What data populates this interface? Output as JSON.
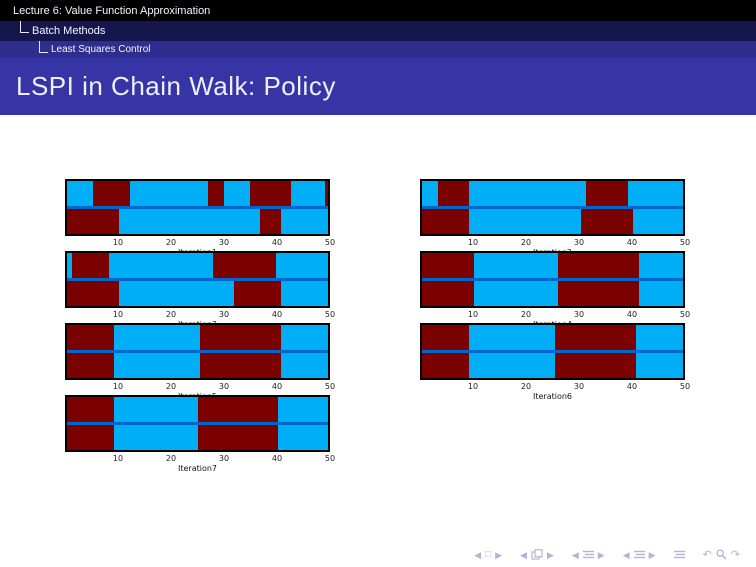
{
  "header": {
    "lecture_title": "Lecture 6: Value Function Approximation",
    "section": "Batch Methods",
    "subsection": "Least Squares Control"
  },
  "slide": {
    "title": "LSPI in Chain Walk: Policy"
  },
  "chart_colors": {
    "blue": "#00AEF5",
    "red": "#7B0000",
    "divider": "#0066CC",
    "border": "#000000"
  },
  "chart_data": [
    {
      "type": "heatmap",
      "label": "Iteration1",
      "col": "left",
      "row": 0,
      "x_range": [
        0,
        50
      ],
      "x_ticks": [
        10,
        20,
        30,
        40,
        50
      ],
      "rows": [
        [
          [
            "blue",
            0,
            5
          ],
          [
            "red",
            5,
            12
          ],
          [
            "blue",
            12,
            27
          ],
          [
            "red",
            27,
            30
          ],
          [
            "blue",
            30,
            35
          ],
          [
            "red",
            35,
            43
          ],
          [
            "blue",
            43,
            49.5
          ],
          [
            "red",
            49.5,
            50
          ]
        ],
        [
          [
            "red",
            0,
            10
          ],
          [
            "blue",
            10,
            37
          ],
          [
            "red",
            37,
            41
          ],
          [
            "blue",
            41,
            50
          ]
        ]
      ]
    },
    {
      "type": "heatmap",
      "label": "Iteration2",
      "col": "right",
      "row": 0,
      "x_range": [
        0,
        50
      ],
      "x_ticks": [
        10,
        20,
        30,
        40,
        50
      ],
      "rows": [
        [
          [
            "blue",
            0,
            3
          ],
          [
            "red",
            3,
            9
          ],
          [
            "blue",
            9,
            31.5
          ],
          [
            "red",
            31.5,
            39.5
          ],
          [
            "blue",
            39.5,
            50
          ]
        ],
        [
          [
            "red",
            0,
            9
          ],
          [
            "blue",
            9,
            30.5
          ],
          [
            "red",
            30.5,
            40.5
          ],
          [
            "blue",
            40.5,
            50
          ]
        ]
      ]
    },
    {
      "type": "heatmap",
      "label": "Iteration3",
      "col": "left",
      "row": 1,
      "x_range": [
        0,
        50
      ],
      "x_ticks": [
        10,
        20,
        30,
        40,
        50
      ],
      "rows": [
        [
          [
            "blue",
            0,
            1
          ],
          [
            "red",
            1,
            8
          ],
          [
            "blue",
            8,
            28
          ],
          [
            "red",
            28,
            40
          ],
          [
            "blue",
            40,
            50
          ]
        ],
        [
          [
            "red",
            0,
            10
          ],
          [
            "blue",
            10,
            32
          ],
          [
            "red",
            32,
            41
          ],
          [
            "blue",
            41,
            50
          ]
        ]
      ]
    },
    {
      "type": "heatmap",
      "label": "Iteration4",
      "col": "right",
      "row": 1,
      "x_range": [
        0,
        50
      ],
      "x_ticks": [
        10,
        20,
        30,
        40,
        50
      ],
      "rows": [
        [
          [
            "red",
            0,
            10
          ],
          [
            "blue",
            10,
            26
          ],
          [
            "red",
            26,
            41.5
          ],
          [
            "blue",
            41.5,
            50
          ]
        ],
        [
          [
            "red",
            0,
            10
          ],
          [
            "blue",
            10,
            26
          ],
          [
            "red",
            26,
            41.5
          ],
          [
            "blue",
            41.5,
            50
          ]
        ]
      ]
    },
    {
      "type": "heatmap",
      "label": "Iteration5",
      "col": "left",
      "row": 2,
      "x_range": [
        0,
        50
      ],
      "x_ticks": [
        10,
        20,
        30,
        40,
        50
      ],
      "rows": [
        [
          [
            "red",
            0,
            9
          ],
          [
            "blue",
            9,
            25.5
          ],
          [
            "red",
            25.5,
            41
          ],
          [
            "blue",
            41,
            50
          ]
        ],
        [
          [
            "red",
            0,
            9
          ],
          [
            "blue",
            9,
            25.5
          ],
          [
            "red",
            25.5,
            41
          ],
          [
            "blue",
            41,
            50
          ]
        ]
      ]
    },
    {
      "type": "heatmap",
      "label": "Iteration6",
      "col": "right",
      "row": 2,
      "x_range": [
        0,
        50
      ],
      "x_ticks": [
        10,
        20,
        30,
        40,
        50
      ],
      "rows": [
        [
          [
            "red",
            0,
            9
          ],
          [
            "blue",
            9,
            25.5
          ],
          [
            "red",
            25.5,
            41
          ],
          [
            "blue",
            41,
            50
          ]
        ],
        [
          [
            "red",
            0,
            9
          ],
          [
            "blue",
            9,
            25.5
          ],
          [
            "red",
            25.5,
            41
          ],
          [
            "blue",
            41,
            50
          ]
        ]
      ]
    },
    {
      "type": "heatmap",
      "label": "Iteration7",
      "col": "left",
      "row": 3,
      "x_range": [
        0,
        50
      ],
      "x_ticks": [
        10,
        20,
        30,
        40,
        50
      ],
      "rows": [
        [
          [
            "red",
            0,
            9
          ],
          [
            "blue",
            9,
            25
          ],
          [
            "red",
            25,
            40.5
          ],
          [
            "blue",
            40.5,
            50
          ]
        ],
        [
          [
            "red",
            0,
            9
          ],
          [
            "blue",
            9,
            25
          ],
          [
            "red",
            25,
            40.5
          ],
          [
            "blue",
            40.5,
            50
          ]
        ]
      ]
    }
  ],
  "nav": {
    "color": "#b3b3d9",
    "groups": [
      [
        {
          "name": "slide-back-icon",
          "kind": "tri-left"
        },
        {
          "name": "slide-icon",
          "kind": "square"
        },
        {
          "name": "slide-forward-icon",
          "kind": "tri-right"
        }
      ],
      [
        {
          "name": "frame-back-icon",
          "kind": "tri-left"
        },
        {
          "name": "frames-icon",
          "kind": "squares"
        },
        {
          "name": "frame-forward-icon",
          "kind": "tri-right"
        }
      ],
      [
        {
          "name": "subsection-back-icon",
          "kind": "tri-left"
        },
        {
          "name": "subsection-icon",
          "kind": "lines"
        },
        {
          "name": "subsection-forward-icon",
          "kind": "tri-right"
        }
      ],
      [
        {
          "name": "section-back-icon",
          "kind": "tri-left"
        },
        {
          "name": "section-icon",
          "kind": "lines"
        },
        {
          "name": "section-forward-icon",
          "kind": "tri-right"
        }
      ],
      [
        {
          "name": "presentation-icon",
          "kind": "lines"
        }
      ],
      [
        {
          "name": "back-icon",
          "kind": "arrow-ccw"
        },
        {
          "name": "search-icon",
          "kind": "magnifier"
        },
        {
          "name": "forward-icon",
          "kind": "arrow-cw"
        }
      ]
    ]
  }
}
